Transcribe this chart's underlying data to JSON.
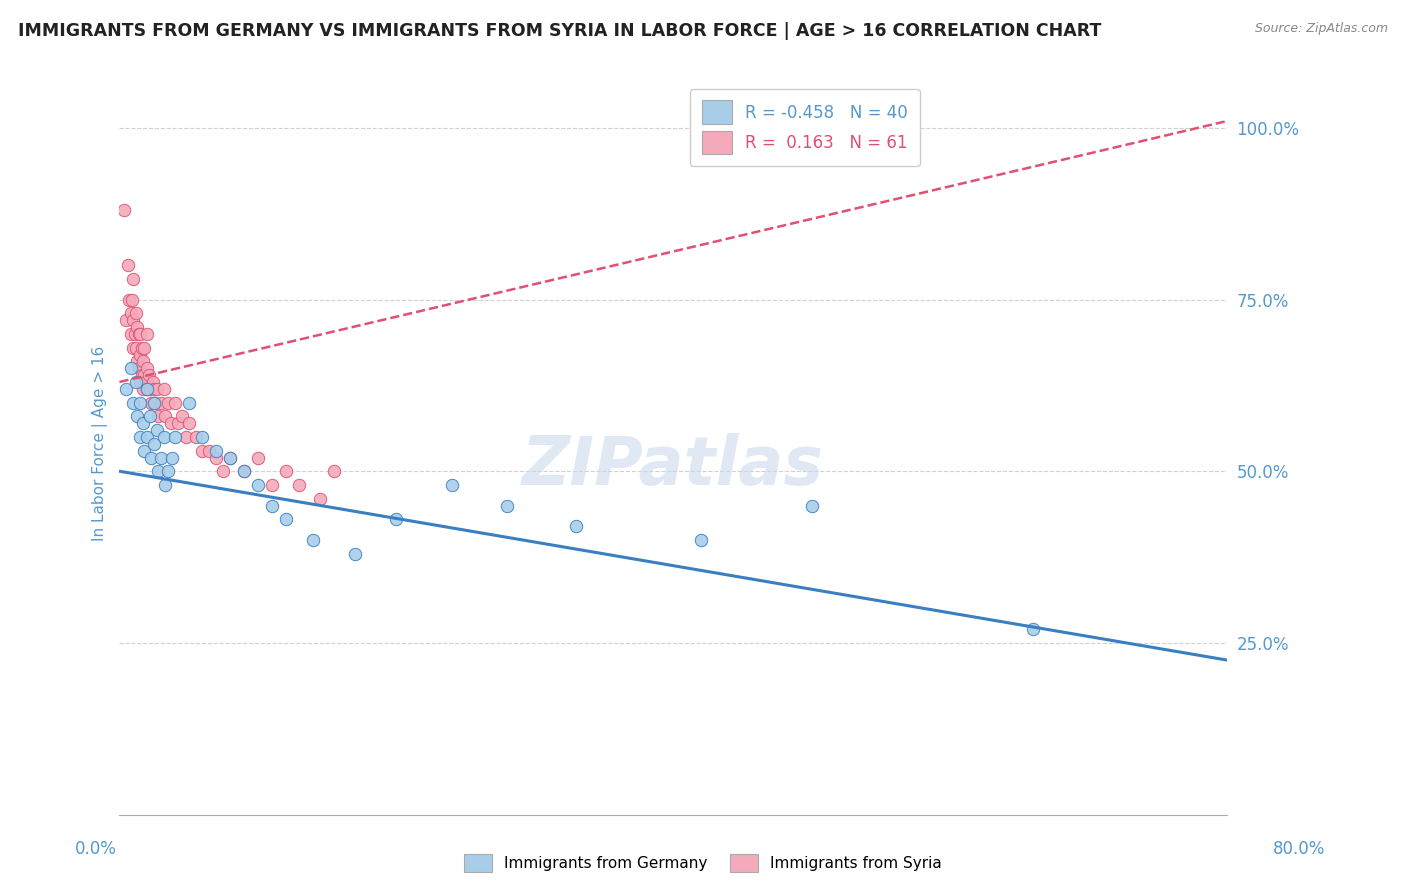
{
  "title": "IMMIGRANTS FROM GERMANY VS IMMIGRANTS FROM SYRIA IN LABOR FORCE | AGE > 16 CORRELATION CHART",
  "source": "Source: ZipAtlas.com",
  "ylabel": "In Labor Force | Age > 16",
  "right_yticks": [
    "100.0%",
    "75.0%",
    "50.0%",
    "25.0%"
  ],
  "right_ytick_vals": [
    1.0,
    0.75,
    0.5,
    0.25
  ],
  "watermark": "ZIPatlas",
  "blue_color": "#A8CDE8",
  "pink_color": "#F4AABB",
  "blue_line_color": "#3A7FC1",
  "pink_line_color": "#E05070",
  "background_color": "#FFFFFF",
  "grid_color": "#CCCCCC",
  "title_color": "#222222",
  "axis_label_color": "#5599CC",
  "xlim": [
    0.0,
    0.8
  ],
  "ylim": [
    0.0,
    1.08
  ],
  "blue_line_x0": 0.0,
  "blue_line_y0": 0.5,
  "blue_line_x1": 0.8,
  "blue_line_y1": 0.225,
  "pink_line_x0": 0.0,
  "pink_line_y0": 0.63,
  "pink_line_x1": 0.8,
  "pink_line_y1": 1.01,
  "blue_scatter_x": [
    0.005,
    0.008,
    0.01,
    0.012,
    0.013,
    0.015,
    0.015,
    0.017,
    0.018,
    0.02,
    0.02,
    0.022,
    0.023,
    0.025,
    0.025,
    0.027,
    0.028,
    0.03,
    0.032,
    0.033,
    0.035,
    0.038,
    0.04,
    0.05,
    0.06,
    0.07,
    0.08,
    0.09,
    0.1,
    0.11,
    0.12,
    0.14,
    0.17,
    0.2,
    0.24,
    0.28,
    0.33,
    0.42,
    0.5,
    0.66
  ],
  "blue_scatter_y": [
    0.62,
    0.65,
    0.6,
    0.63,
    0.58,
    0.55,
    0.6,
    0.57,
    0.53,
    0.55,
    0.62,
    0.58,
    0.52,
    0.6,
    0.54,
    0.56,
    0.5,
    0.52,
    0.55,
    0.48,
    0.5,
    0.52,
    0.55,
    0.6,
    0.55,
    0.53,
    0.52,
    0.5,
    0.48,
    0.45,
    0.43,
    0.4,
    0.38,
    0.43,
    0.48,
    0.45,
    0.42,
    0.4,
    0.45,
    0.27
  ],
  "pink_scatter_x": [
    0.003,
    0.005,
    0.006,
    0.007,
    0.008,
    0.008,
    0.009,
    0.01,
    0.01,
    0.01,
    0.011,
    0.012,
    0.012,
    0.013,
    0.013,
    0.014,
    0.014,
    0.015,
    0.015,
    0.015,
    0.016,
    0.016,
    0.017,
    0.017,
    0.018,
    0.018,
    0.019,
    0.02,
    0.02,
    0.02,
    0.021,
    0.022,
    0.023,
    0.024,
    0.025,
    0.026,
    0.027,
    0.028,
    0.03,
    0.032,
    0.033,
    0.035,
    0.037,
    0.04,
    0.042,
    0.045,
    0.048,
    0.05,
    0.055,
    0.06,
    0.065,
    0.07,
    0.075,
    0.08,
    0.09,
    0.1,
    0.11,
    0.12,
    0.13,
    0.145,
    0.155
  ],
  "pink_scatter_y": [
    0.88,
    0.72,
    0.8,
    0.75,
    0.73,
    0.7,
    0.75,
    0.72,
    0.68,
    0.78,
    0.7,
    0.73,
    0.68,
    0.71,
    0.66,
    0.7,
    0.65,
    0.7,
    0.67,
    0.63,
    0.68,
    0.64,
    0.66,
    0.62,
    0.68,
    0.64,
    0.63,
    0.65,
    0.62,
    0.7,
    0.64,
    0.62,
    0.6,
    0.63,
    0.62,
    0.6,
    0.62,
    0.58,
    0.6,
    0.62,
    0.58,
    0.6,
    0.57,
    0.6,
    0.57,
    0.58,
    0.55,
    0.57,
    0.55,
    0.53,
    0.53,
    0.52,
    0.5,
    0.52,
    0.5,
    0.52,
    0.48,
    0.5,
    0.48,
    0.46,
    0.5
  ]
}
